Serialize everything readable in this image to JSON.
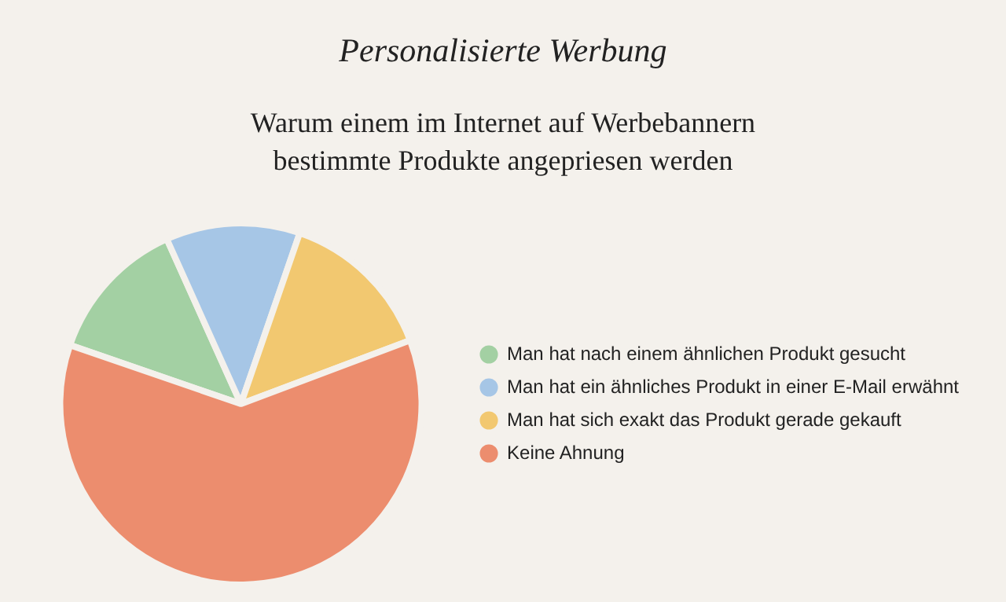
{
  "chart_data": {
    "type": "pie",
    "title": "Personalisierte Werbung",
    "subtitle": "Warum einem im Internet auf Werbebannern bestimmte Produkte angepriesen werden",
    "categories": [
      "Man hat nach einem ähnlichen Produkt gesucht",
      "Man hat ein ähnliches Produkt in einer E-Mail erwähnt",
      "Man hat sich exakt das Produkt gerade gekauft",
      "Keine Ahnung"
    ],
    "values": [
      13,
      12,
      14,
      61
    ],
    "colors": [
      "#a3d0a3",
      "#a6c6e6",
      "#f2c870",
      "#ec8d6e"
    ],
    "legend": "right"
  }
}
